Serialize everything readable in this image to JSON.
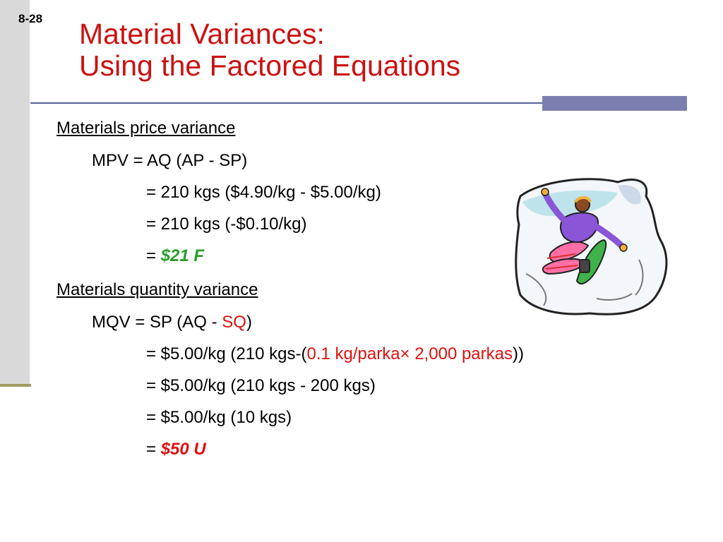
{
  "slide_number": "8-28",
  "title": {
    "line1": "Material Variances:",
    "line2": "Using the Factored Equations"
  },
  "price": {
    "heading": "Materials price variance",
    "formula": "MPV = AQ (AP - SP)",
    "step1": "= 210 kgs ($4.90/kg - $5.00/kg)",
    "step2": "= 210 kgs (-$0.10/kg)",
    "result_prefix": "= ",
    "result": "$21 F"
  },
  "quantity": {
    "heading": "Materials quantity variance",
    "formula_prefix": "MQV = SP (AQ - ",
    "formula_sq": "SQ",
    "formula_suffix": ")",
    "step1_prefix": "= $5.00/kg (210 kgs-(",
    "step1_red": "0.1 kg/parka× 2,000 parkas",
    "step1_suffix": "))",
    "step2": "= $5.00/kg (210 kgs - 200 kgs)",
    "step3": "= $5.00/kg (10 kgs)",
    "result_prefix": "= ",
    "result": "$50 U"
  },
  "colors": {
    "title": "#cc1111",
    "favorable": "#2a9d2a",
    "unfavorable": "#e01010",
    "accent": "#7a7fb0"
  },
  "clipart_icon": "snowboarder-icon"
}
